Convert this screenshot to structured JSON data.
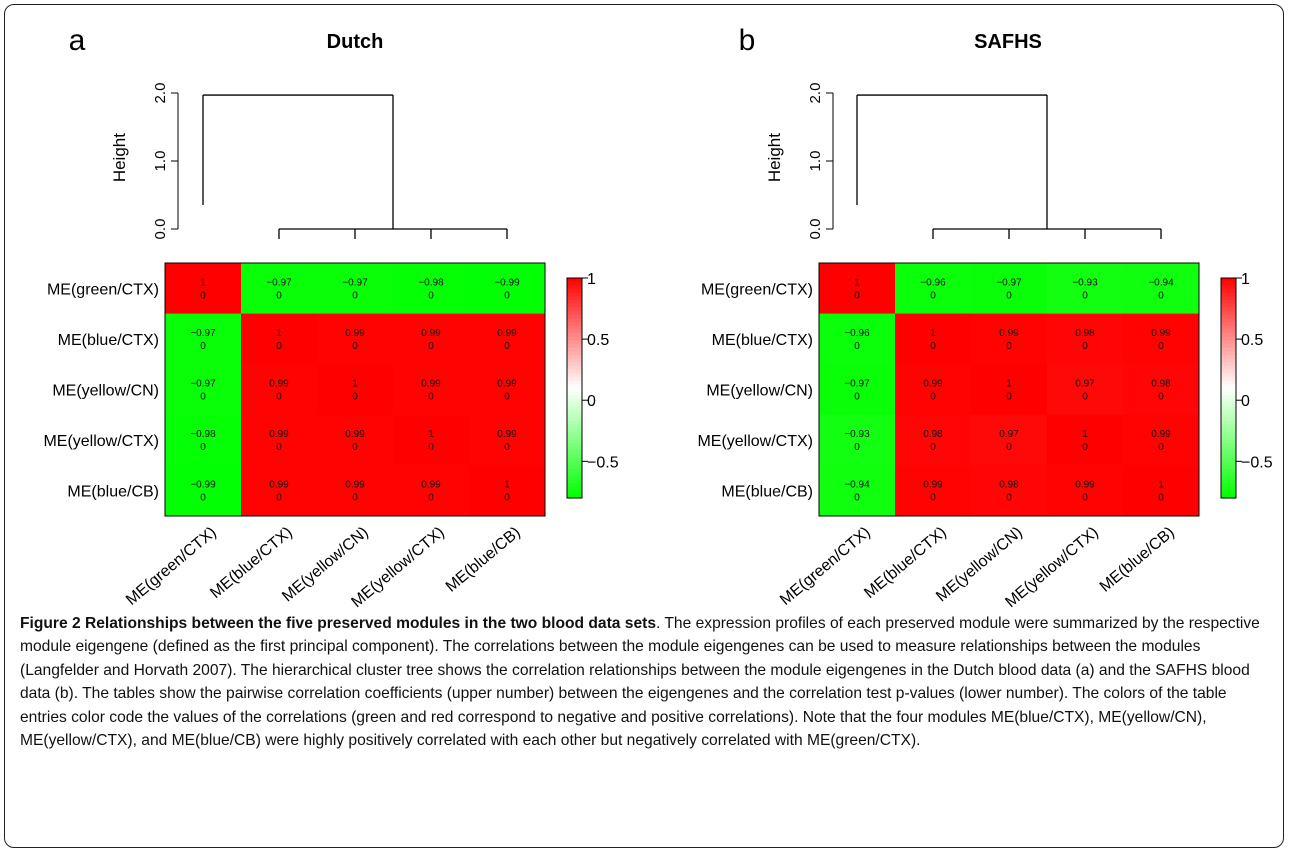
{
  "chart_data": [
    {
      "type": "heatmap",
      "panel_label": "a",
      "title": "Dutch",
      "dendrogram": {
        "ylabel": "Height",
        "yticks": [
          "0.0",
          "1.0",
          "2.0"
        ],
        "ylim": [
          0,
          2
        ],
        "main_merge_height": 1.97,
        "sub_merge_height": 0.0
      },
      "rows": [
        "ME(green/CTX)",
        "ME(blue/CTX)",
        "ME(yellow/CN)",
        "ME(yellow/CTX)",
        "ME(blue/CB)"
      ],
      "columns": [
        "ME(green/CTX)",
        "ME(blue/CTX)",
        "ME(yellow/CN)",
        "ME(yellow/CTX)",
        "ME(blue/CB)"
      ],
      "correlations": [
        [
          "1",
          "−0.97",
          "−0.97",
          "−0.98",
          "−0.99"
        ],
        [
          "−0.97",
          "1",
          "0.99",
          "0.99",
          "0.99"
        ],
        [
          "−0.97",
          "0.99",
          "1",
          "0.99",
          "0.99"
        ],
        [
          "−0.98",
          "0.99",
          "0.99",
          "1",
          "0.99"
        ],
        [
          "−0.99",
          "0.99",
          "0.99",
          "0.99",
          "1"
        ]
      ],
      "pvalues": [
        [
          "0",
          "0",
          "0",
          "0",
          "0"
        ],
        [
          "0",
          "0",
          "0",
          "0",
          "0"
        ],
        [
          "0",
          "0",
          "0",
          "0",
          "0"
        ],
        [
          "0",
          "0",
          "0",
          "0",
          "0"
        ],
        [
          "0",
          "0",
          "0",
          "0",
          "0"
        ]
      ],
      "colorbar": {
        "ticks": [
          1,
          0.5,
          0,
          -0.5
        ],
        "tick_labels": [
          "1",
          "0.5",
          "0",
          "−0.5"
        ],
        "range": [
          -1,
          1
        ]
      }
    },
    {
      "type": "heatmap",
      "panel_label": "b",
      "title": "SAFHS",
      "dendrogram": {
        "ylabel": "Height",
        "yticks": [
          "0.0",
          "1.0",
          "2.0"
        ],
        "ylim": [
          0,
          2
        ],
        "main_merge_height": 1.97,
        "sub_merge_height": 0.0
      },
      "rows": [
        "ME(green/CTX)",
        "ME(blue/CTX)",
        "ME(yellow/CN)",
        "ME(yellow/CTX)",
        "ME(blue/CB)"
      ],
      "columns": [
        "ME(green/CTX)",
        "ME(blue/CTX)",
        "ME(yellow/CN)",
        "ME(yellow/CTX)",
        "ME(blue/CB)"
      ],
      "correlations": [
        [
          "1",
          "−0.96",
          "−0.97",
          "−0.93",
          "−0.94"
        ],
        [
          "−0.96",
          "1",
          "0.99",
          "0.98",
          "0.99"
        ],
        [
          "−0.97",
          "0.99",
          "1",
          "0.97",
          "0.98"
        ],
        [
          "−0.93",
          "0.98",
          "0.97",
          "1",
          "0.99"
        ],
        [
          "−0.94",
          "0.99",
          "0.98",
          "0.99",
          "1"
        ]
      ],
      "pvalues": [
        [
          "0",
          "0",
          "0",
          "0",
          "0"
        ],
        [
          "0",
          "0",
          "0",
          "0",
          "0"
        ],
        [
          "0",
          "0",
          "0",
          "0",
          "0"
        ],
        [
          "0",
          "0",
          "0",
          "0",
          "0"
        ],
        [
          "0",
          "0",
          "0",
          "0",
          "0"
        ]
      ],
      "colorbar": {
        "ticks": [
          1,
          0.5,
          0,
          -0.5
        ],
        "tick_labels": [
          "1",
          "0.5",
          "0",
          "−0.5"
        ],
        "range": [
          -1,
          1
        ]
      }
    }
  ],
  "colors": {
    "positive": "#ff0000",
    "negative": "#00ff00",
    "neutral": "#ffffff"
  },
  "caption": {
    "title": "Figure 2 Relationships between the five preserved modules in the two blood data sets",
    "body": ". The expression profiles of each preserved module were summarized by the respective module eigengene (defined as the first principal component). The correlations between the module eigengenes can be used to measure relationships between the modules (Langfelder and Horvath 2007). The hierarchical cluster tree shows the correlation relationships between the module eigengenes in the Dutch blood data (a) and the SAFHS blood data (b). The tables show the pairwise correlation coefficients (upper number) between the eigengenes and the correlation test p-values (lower number). The colors of the table entries color code the values of the correlations (green and red correspond to negative and positive correlations). Note that the four modules ME(blue/CTX), ME(yellow/CN), ME(yellow/CTX), and ME(blue/CB) were highly positively correlated with each other but negatively correlated with ME(green/CTX)."
  }
}
